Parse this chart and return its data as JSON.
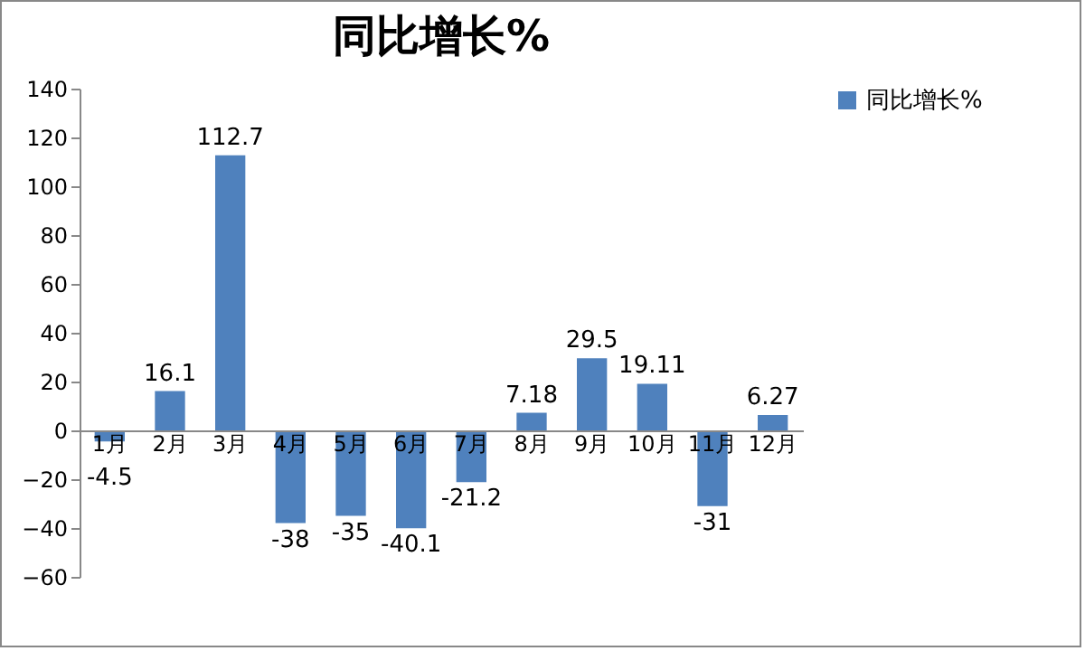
{
  "chart_data": {
    "type": "bar",
    "title": "同比增长%",
    "categories": [
      "1月",
      "2月",
      "3月",
      "4月",
      "5月",
      "6月",
      "7月",
      "8月",
      "9月",
      "10月",
      "11月",
      "12月"
    ],
    "series": [
      {
        "name": "同比增长%",
        "color": "#4f81bd",
        "values": [
          -4.5,
          16.1,
          112.7,
          -38,
          -35,
          -40.1,
          -21.2,
          7.18,
          29.5,
          19.11,
          -31,
          6.27
        ]
      }
    ],
    "ylim": [
      -60,
      140
    ],
    "yticks": [
      -60,
      -40,
      -20,
      0,
      20,
      40,
      60,
      80,
      100,
      120,
      140
    ],
    "grid": false,
    "legend": "right",
    "data_labels": true
  }
}
